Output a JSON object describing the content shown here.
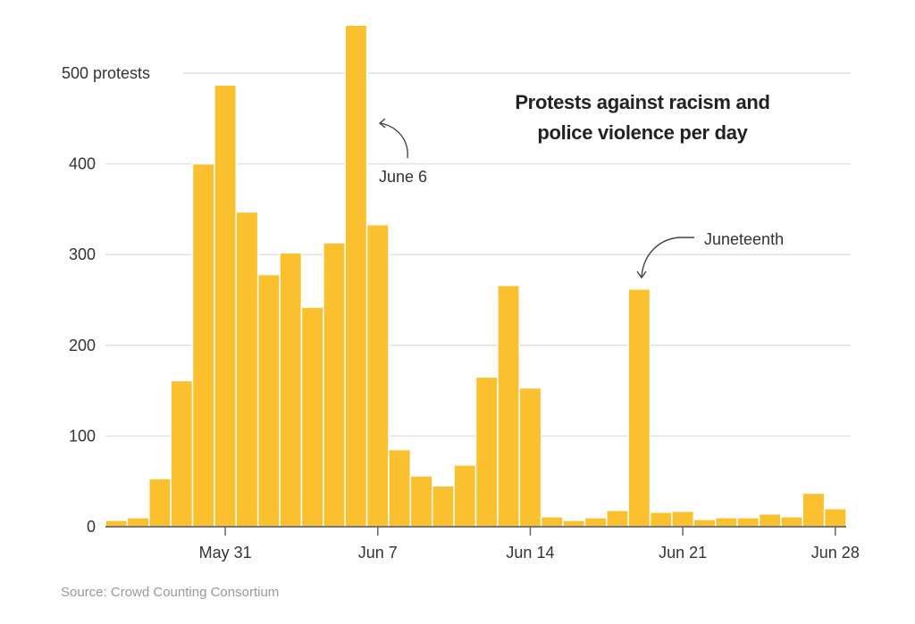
{
  "chart_data": {
    "type": "bar",
    "title": "Protests against racism and police violence per day",
    "title_lines": [
      "Protests against racism and",
      "police violence per day"
    ],
    "xlabel": "",
    "ylabel": "protests",
    "ylim": [
      0,
      560
    ],
    "grid": true,
    "y_ticks": [
      {
        "value": 0,
        "label": "0"
      },
      {
        "value": 100,
        "label": "100"
      },
      {
        "value": 200,
        "label": "200"
      },
      {
        "value": 300,
        "label": "300"
      },
      {
        "value": 400,
        "label": "400"
      },
      {
        "value": 500,
        "label": "500 protests"
      }
    ],
    "x_ticks": [
      {
        "index": 5,
        "label": "May 31"
      },
      {
        "index": 12,
        "label": "Jun 7"
      },
      {
        "index": 19,
        "label": "Jun 14"
      },
      {
        "index": 26,
        "label": "Jun 21"
      },
      {
        "index": 33,
        "label": "Jun 28"
      }
    ],
    "categories": [
      "May 26",
      "May 27",
      "May 28",
      "May 29",
      "May 30",
      "May 31",
      "Jun 1",
      "Jun 2",
      "Jun 3",
      "Jun 4",
      "Jun 5",
      "Jun 6",
      "Jun 7",
      "Jun 8",
      "Jun 9",
      "Jun 10",
      "Jun 11",
      "Jun 12",
      "Jun 13",
      "Jun 14",
      "Jun 15",
      "Jun 16",
      "Jun 17",
      "Jun 18",
      "Jun 19",
      "Jun 20",
      "Jun 21",
      "Jun 22",
      "Jun 23",
      "Jun 24",
      "Jun 25",
      "Jun 26",
      "Jun 27",
      "Jun 28"
    ],
    "values": [
      7,
      10,
      53,
      161,
      400,
      487,
      347,
      278,
      302,
      242,
      313,
      553,
      333,
      85,
      56,
      45,
      68,
      165,
      266,
      153,
      11,
      7,
      10,
      18,
      262,
      16,
      17,
      8,
      10,
      10,
      14,
      11,
      37,
      20
    ],
    "bar_color": "#FBC02D",
    "annotations": [
      {
        "label": "June 6",
        "index": 11
      },
      {
        "label": "Juneteenth",
        "index": 24
      }
    ]
  },
  "source": "Source: Crowd Counting Consortium"
}
